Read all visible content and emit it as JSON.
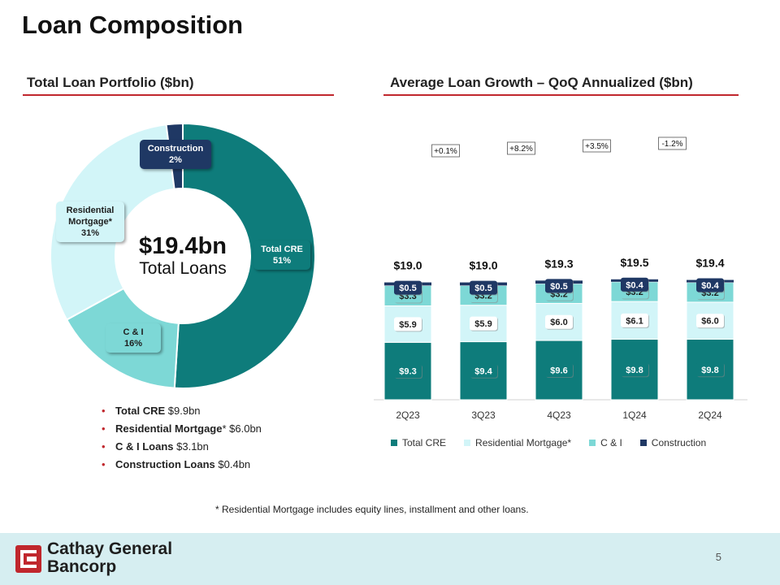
{
  "slide": {
    "title": "Loan Composition",
    "page_number": "5",
    "footnote": "*  Residential Mortgage includes equity lines, installment and other loans."
  },
  "left_panel": {
    "heading": "Total Loan Portfolio ($bn)",
    "center_value": "$19.4bn",
    "center_label": "Total Loans",
    "bullets": [
      {
        "bold": "Total CRE",
        "value": " $9.9bn"
      },
      {
        "bold": "Residential Mortgage",
        "value": "* $6.0bn"
      },
      {
        "bold": "C & I Loans",
        "value": " $3.1bn"
      },
      {
        "bold": "Construction Loans",
        "value": " $0.4bn"
      }
    ]
  },
  "right_panel": {
    "heading": "Average Loan Growth – QoQ Annualized ($bn)"
  },
  "brand": {
    "name_line1": "Cathay General",
    "name_line2": "Bancorp"
  },
  "colors": {
    "total_cre": "#0e7c7b",
    "residential_mortgage": "#d2f5f8",
    "c_and_i": "#7dd8d6",
    "construction": "#1f3864",
    "accent_red": "#c0272d",
    "footer_bg": "#d6eef1"
  },
  "chart_data": [
    {
      "type": "pie",
      "title": "Total Loan Portfolio ($bn)",
      "style": "donut",
      "slices": [
        {
          "name": "Total CRE",
          "line1": "Total CRE",
          "line2": "",
          "value": 51,
          "label": "51%",
          "color": "#0e7c7b"
        },
        {
          "name": "C & I",
          "line1": "C & I",
          "line2": "",
          "value": 16,
          "label": "16%",
          "color": "#7dd8d6"
        },
        {
          "name": "Residential Mortgage*",
          "line1": "Residential",
          "line2": "Mortgage*",
          "value": 31,
          "label": "31%",
          "color": "#d2f5f8"
        },
        {
          "name": "Construction",
          "line1": "Construction",
          "line2": "",
          "value": 2,
          "label": "2%",
          "color": "#1f3864"
        }
      ]
    },
    {
      "type": "bar",
      "stacked": true,
      "title": "Average Loan Growth – QoQ Annualized ($bn)",
      "categories": [
        "2Q23",
        "3Q23",
        "4Q23",
        "1Q24",
        "2Q24"
      ],
      "series": [
        {
          "name": "Total CRE",
          "color": "#0e7c7b",
          "values": [
            9.3,
            9.4,
            9.6,
            9.8,
            9.8
          ],
          "labels": [
            "$9.3",
            "$9.4",
            "$9.6",
            "$9.8",
            "$9.8"
          ]
        },
        {
          "name": "Residential Mortgage*",
          "color": "#d2f5f8",
          "values": [
            5.9,
            5.9,
            6.0,
            6.1,
            6.0
          ],
          "labels": [
            "$5.9",
            "$5.9",
            "$6.0",
            "$6.1",
            "$6.0"
          ]
        },
        {
          "name": "C & I",
          "color": "#7dd8d6",
          "values": [
            3.3,
            3.2,
            3.2,
            3.2,
            3.2
          ],
          "labels": [
            "$3.3",
            "$3.2",
            "$3.2",
            "$3.2",
            "$3.2"
          ]
        },
        {
          "name": "Construction",
          "color": "#1f3864",
          "values": [
            0.5,
            0.5,
            0.5,
            0.4,
            0.4
          ],
          "labels": [
            "$0.5",
            "$0.5",
            "$0.5",
            "$0.4",
            "$0.4"
          ]
        }
      ],
      "totals": [
        "$19.0",
        "$19.0",
        "$19.3",
        "$19.5",
        "$19.4"
      ],
      "growth": [
        "+0.1%",
        "+8.2%",
        "+3.5%",
        "-1.2%"
      ],
      "legend_position": "bottom",
      "grid": false
    }
  ]
}
